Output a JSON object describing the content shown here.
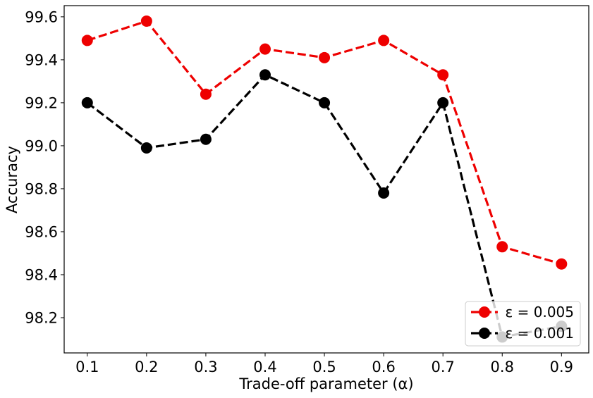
{
  "chart_data": {
    "type": "line",
    "title": "",
    "xlabel": "Trade-off parameter (α)",
    "ylabel": "Accuracy",
    "x": [
      0.1,
      0.2,
      0.3,
      0.4,
      0.5,
      0.6,
      0.7,
      0.8,
      0.9
    ],
    "x_tick_labels": [
      "0.1",
      "0.2",
      "0.3",
      "0.4",
      "0.5",
      "0.6",
      "0.7",
      "0.8",
      "0.9"
    ],
    "y_ticks": [
      98.2,
      98.4,
      98.6,
      98.8,
      99.0,
      99.2,
      99.4,
      99.6
    ],
    "y_tick_labels": [
      "98.2",
      "98.4",
      "98.6",
      "98.8",
      "99.0",
      "99.2",
      "99.4",
      "99.6"
    ],
    "xlim": [
      0.061,
      0.946
    ],
    "ylim": [
      98.036,
      99.652
    ],
    "grid": false,
    "legend_position": "lower right",
    "series": [
      {
        "name": "ε = 0.005",
        "legend_label": "ε = 0.005",
        "color": "#ee0000",
        "linestyle": "dashed",
        "marker": "circle",
        "values": [
          99.49,
          99.58,
          99.24,
          99.45,
          99.41,
          99.49,
          99.33,
          98.53,
          98.45
        ]
      },
      {
        "name": "ε = 0.001",
        "legend_label": "ε = 0.001",
        "color": "#000000",
        "linestyle": "dashed",
        "marker": "circle",
        "values": [
          99.2,
          98.99,
          99.03,
          99.33,
          99.2,
          98.78,
          99.2,
          98.11,
          98.16
        ]
      }
    ]
  }
}
